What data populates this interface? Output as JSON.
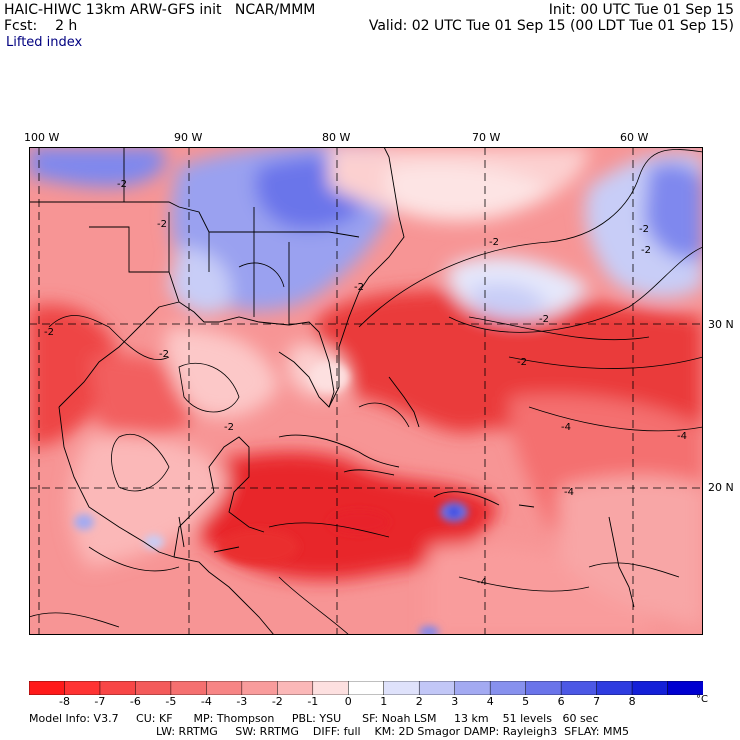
{
  "header": {
    "model_title": "HAIC-HIWC 13km ARW-GFS init",
    "org": "NCAR/MMM",
    "init_label": "Init: 00 UTC Tue 01 Sep 15",
    "fcst_label": "Fcst:",
    "fcst_value": "2 h",
    "valid_label": "Valid: 02 UTC Tue 01 Sep 15 (00 LDT Tue 01 Sep 15)",
    "field_name": "Lifted index"
  },
  "map": {
    "longitude_labels": [
      "100 W",
      "90 W",
      "80 W",
      "70 W",
      "60 W"
    ],
    "latitude_labels": [
      "30 N",
      "20 N"
    ],
    "contour_labels": [
      "-2",
      "-2",
      "-2",
      "-2",
      "-2",
      "-2",
      "-2",
      "-2",
      "-2",
      "-2",
      "-2",
      "-4",
      "-4",
      "-4",
      "-4"
    ],
    "colors": {
      "unstable_deep": "#e8222b",
      "unstable_mid": "#f25a5a",
      "unstable_light": "#f79595",
      "neutral_pale": "#fcd0d0",
      "stable_light": "#c8cdf7",
      "stable_mid": "#7f88ee",
      "stable_deep": "#4a56e0"
    }
  },
  "colorbar": {
    "labels": [
      "-8",
      "-7",
      "-6",
      "-5",
      "-4",
      "-3",
      "-2",
      "-1",
      "0",
      "1",
      "2",
      "3",
      "4",
      "5",
      "6",
      "7",
      "8"
    ],
    "unit": "°C",
    "colors": [
      "#ff1a1a",
      "#ff3333",
      "#f84646",
      "#f45a5a",
      "#f57070",
      "#f78585",
      "#f99c9c",
      "#fbb8b8",
      "#fde0e0",
      "#ffffff",
      "#dfe2fb",
      "#c2c7f7",
      "#a3aaf2",
      "#8791ee",
      "#6a74ea",
      "#4c58e5",
      "#2e3ce0",
      "#1420d8",
      "#0000d0"
    ]
  },
  "footer": {
    "line1": "Model Info: V3.7     CU: KF      MP: Thompson     PBL: YSU      SF: Noah LSM     13 km    51 levels   60 sec",
    "line2": "LW: RRTMG     SW: RRTMG    DIFF: full    KM: 2D Smagor DAMP: Rayleigh3  SFLAY: MM5"
  }
}
